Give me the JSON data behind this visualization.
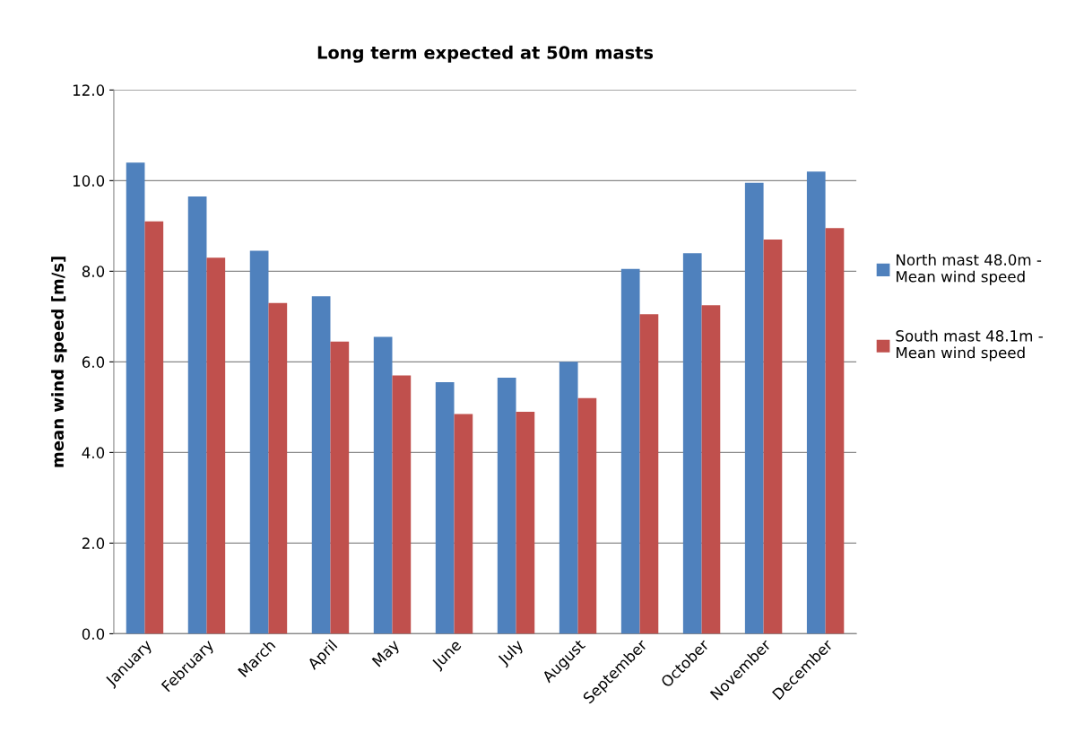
{
  "chart_data": {
    "type": "bar",
    "title": "Long term expected at 50m masts",
    "ylabel": "mean wind speed [m/s]",
    "categories": [
      "January",
      "February",
      "March",
      "April",
      "May",
      "June",
      "July",
      "August",
      "September",
      "October",
      "November",
      "December"
    ],
    "series": [
      {
        "name": "North mast 48.0m -\nMean wind speed",
        "color": "#4f81bd",
        "values": [
          10.4,
          9.65,
          8.45,
          7.45,
          6.55,
          5.55,
          5.65,
          6.0,
          8.05,
          8.4,
          9.95,
          10.2
        ]
      },
      {
        "name": "South mast 48.1m -\nMean wind speed",
        "color": "#c0504d",
        "values": [
          9.1,
          8.3,
          7.3,
          6.45,
          5.7,
          4.85,
          4.9,
          5.2,
          7.05,
          7.25,
          8.7,
          8.95
        ]
      }
    ],
    "ylim": [
      0,
      12
    ],
    "yticks": [
      {
        "value": 0,
        "label": "0.0"
      },
      {
        "value": 2,
        "label": "2.0"
      },
      {
        "value": 4,
        "label": "4.0"
      },
      {
        "value": 6,
        "label": "6.0"
      },
      {
        "value": 8,
        "label": "8.0"
      },
      {
        "value": 10,
        "label": "10.0"
      },
      {
        "value": 12,
        "label": "12.0"
      }
    ],
    "grid": "y",
    "legend": "right"
  }
}
